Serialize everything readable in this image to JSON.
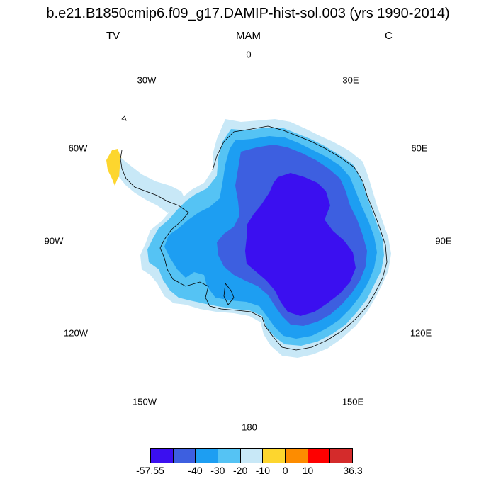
{
  "title": "b.e21.B1850cmip6.f09_g17.DAMIP-hist-sol.003 (yrs 1990-2014)",
  "left_label": "TV",
  "center_label": "MAM",
  "right_label": "C",
  "lon_labels": {
    "n0": "0",
    "n30e": "30E",
    "n60e": "60E",
    "n90e": "90E",
    "n120e": "120E",
    "n150e": "150E",
    "n180": "180",
    "n150w": "150W",
    "n120w": "120W",
    "n90w": "90W",
    "n60w": "60W",
    "n30w": "30W"
  },
  "colorbar": {
    "colors": [
      "#3b0ff0",
      "#3d5fe0",
      "#1d9ef2",
      "#55c3f4",
      "#c8e8f7",
      "#fdd62e",
      "#fd8c00",
      "#fe0000",
      "#d42b2b"
    ],
    "tick_labels": [
      "-57.55",
      "-40",
      "-30",
      "-20",
      "-10",
      "0",
      "10",
      "36.3"
    ]
  },
  "map_colors": {
    "lightest": "#c8e8f7",
    "light": "#55c3f4",
    "medium": "#1d9ef2",
    "dark": "#3d5fe0",
    "darkest": "#3b0ff0",
    "positive": "#fdd62e"
  }
}
